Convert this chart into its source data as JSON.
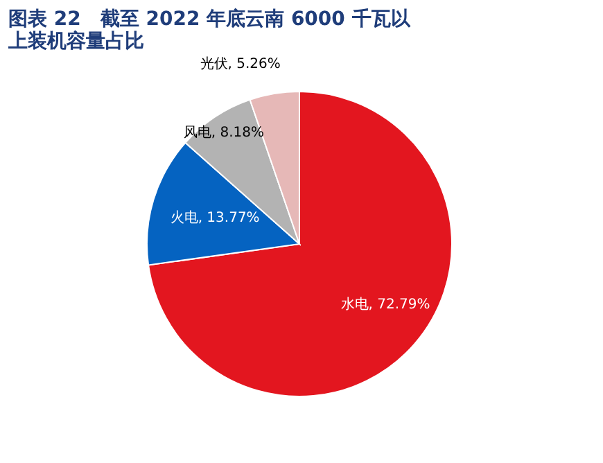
{
  "chart_data": {
    "type": "pie",
    "title": "图表 22　截至 2022 年底云南 6000 千瓦以上装机容量占比",
    "categories": [
      "水电",
      "火电",
      "风电",
      "光伏"
    ],
    "values": [
      72.79,
      13.77,
      8.18,
      5.26
    ],
    "colors": [
      "#e3161f",
      "#0563c1",
      "#b3b3b3",
      "#e6b8b7"
    ],
    "value_labels": [
      ", 72.79%",
      ", 13.77%",
      ", 8.18%",
      ", 5.26%"
    ],
    "legend": false
  }
}
